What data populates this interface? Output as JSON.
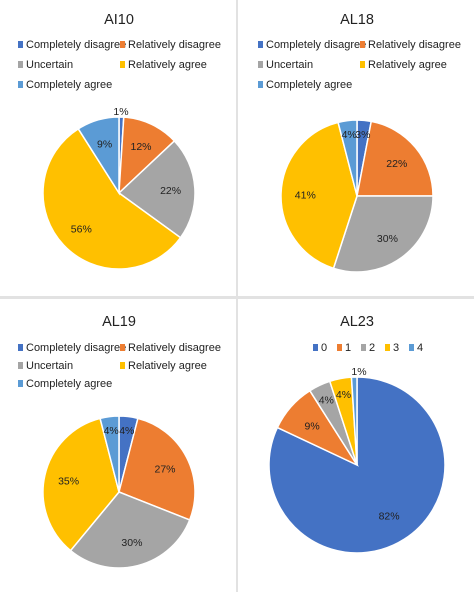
{
  "colors": {
    "Completely disagree": "#4472c4",
    "Relatively disagree": "#ed7d31",
    "Uncertain": "#a5a5a5",
    "Relatively agree": "#ffc000",
    "Completely agree": "#5b9bd5"
  },
  "chart_data": [
    {
      "type": "pie",
      "title": "AI10",
      "categories": [
        "Completely disagree",
        "Relatively disagree",
        "Uncertain",
        "Relatively agree",
        "Completely agree"
      ],
      "values": [
        1,
        12,
        22,
        56,
        9
      ],
      "data_labels": [
        "1%",
        "12%",
        "22%",
        "56%",
        "9%"
      ],
      "legend_placement": "top"
    },
    {
      "type": "pie",
      "title": "AL18",
      "categories": [
        "Completely disagree",
        "Relatively disagree",
        "Uncertain",
        "Relatively agree",
        "Completely agree"
      ],
      "values": [
        3,
        22,
        30,
        41,
        4
      ],
      "data_labels": [
        "3%",
        "22%",
        "30%",
        "41%",
        "4%"
      ],
      "legend_placement": "top"
    },
    {
      "type": "pie",
      "title": "AL19",
      "categories": [
        "Completely disagree",
        "Relatively disagree",
        "Uncertain",
        "Relatively agree",
        "Completely agree"
      ],
      "values": [
        4,
        27,
        30,
        35,
        4
      ],
      "data_labels": [
        "4%",
        "27%",
        "30%",
        "35%",
        "4%"
      ],
      "legend_placement": "top"
    },
    {
      "type": "pie",
      "title": "AL23",
      "categories": [
        "0",
        "1",
        "2",
        "3",
        "4"
      ],
      "values": [
        82,
        9,
        4,
        4,
        1
      ],
      "data_labels": [
        "82%",
        "9%",
        "4%",
        "4%",
        "1%"
      ],
      "legend_placement": "top",
      "colors": [
        "#4472c4",
        "#ed7d31",
        "#a5a5a5",
        "#ffc000",
        "#5b9bd5"
      ]
    }
  ]
}
